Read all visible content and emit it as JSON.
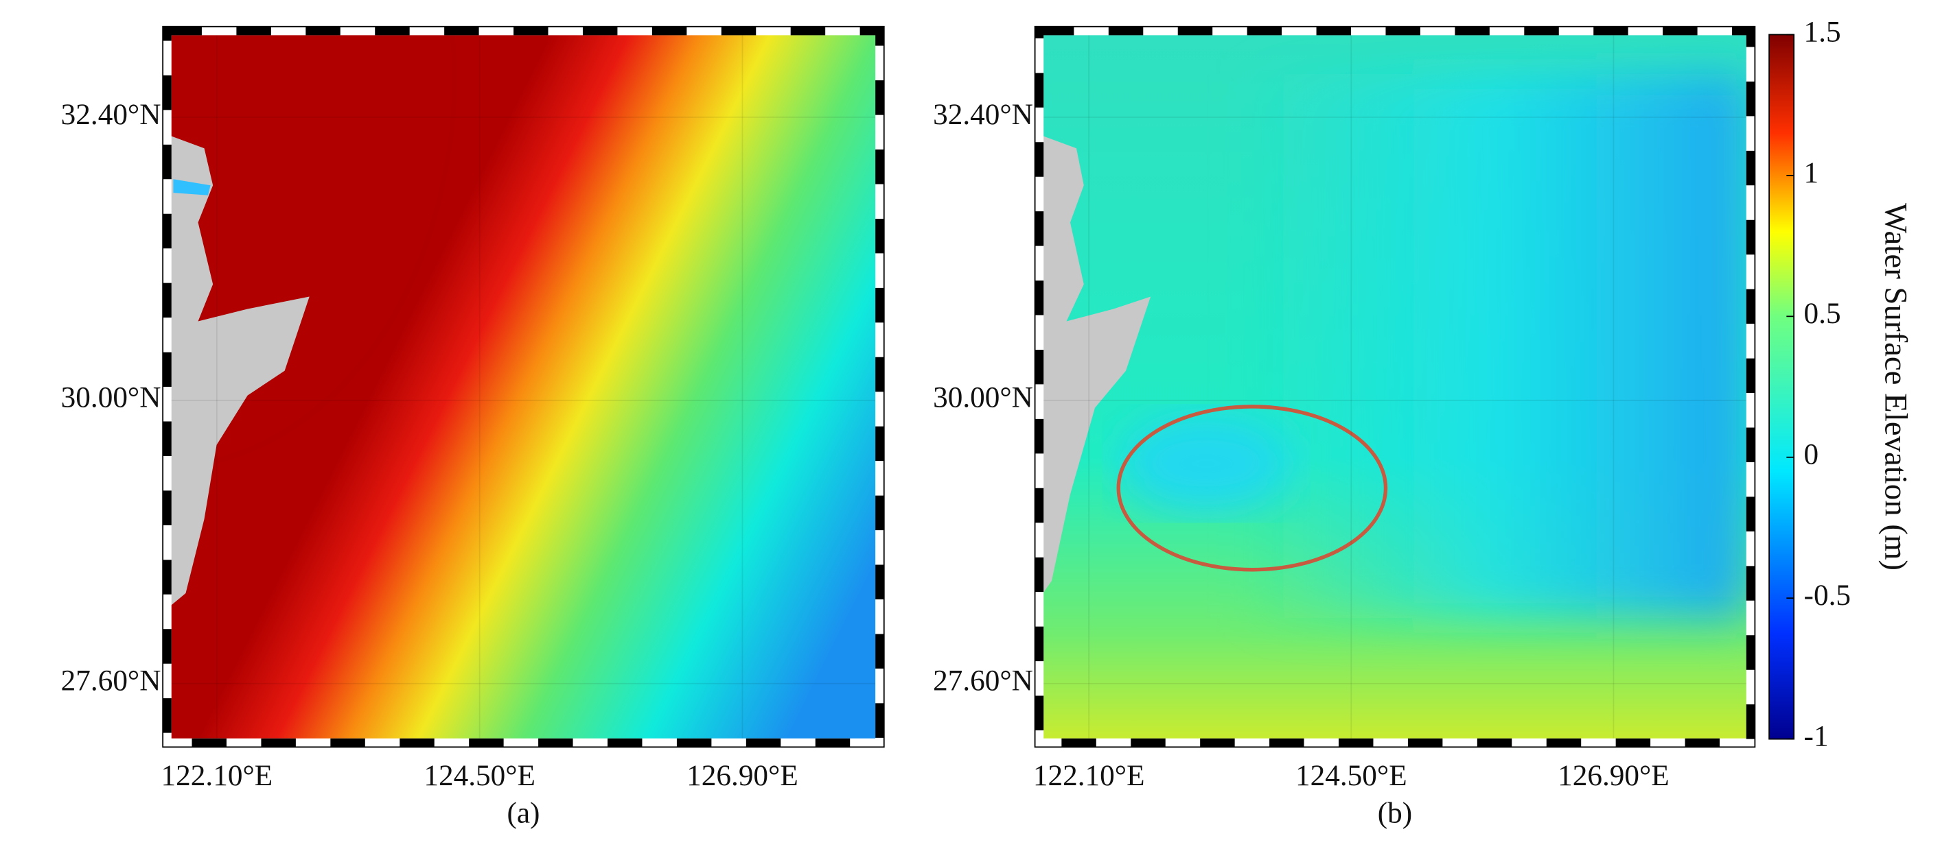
{
  "map": {
    "xlim": [
      121.68,
      128.12
    ],
    "ylim": [
      27.13,
      33.1
    ],
    "xticks": [
      {
        "value": 122.1,
        "label": "122.10°E"
      },
      {
        "value": 124.5,
        "label": "124.50°E"
      },
      {
        "value": 126.9,
        "label": "126.90°E"
      }
    ],
    "yticks": [
      {
        "value": 32.4,
        "label": "32.40°N"
      },
      {
        "value": 30.0,
        "label": "30.00°N"
      },
      {
        "value": 27.6,
        "label": "27.60°N"
      }
    ],
    "grid": true
  },
  "panels": [
    {
      "label": "(a)"
    },
    {
      "label": "(b)"
    }
  ],
  "colorbar": {
    "label": "Water Surface Elevation (m)",
    "lim": [
      -1,
      1.5
    ],
    "ticks": [
      1.5,
      1,
      0.5,
      0,
      -0.5,
      -1
    ]
  }
}
